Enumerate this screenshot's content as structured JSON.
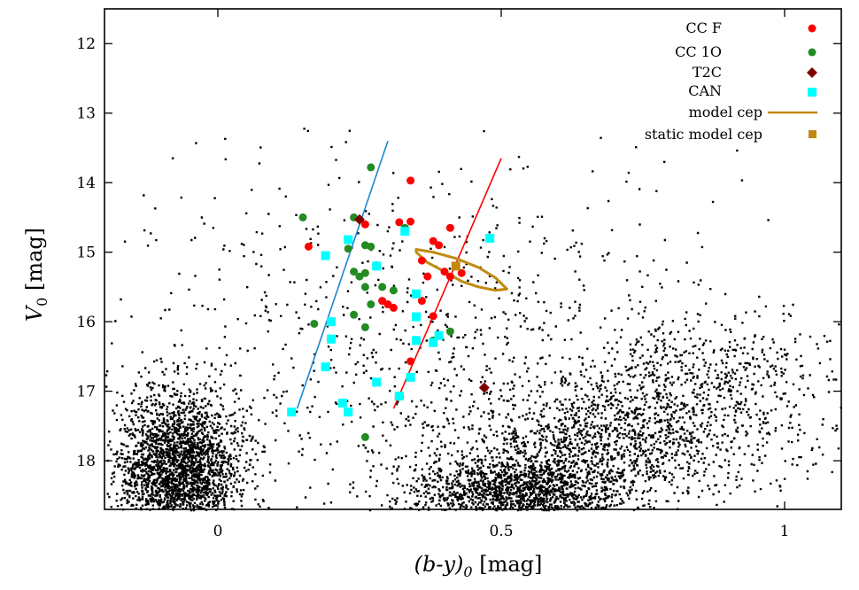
{
  "chart_data": {
    "type": "scatter",
    "title": "",
    "xlabel": "(b-y)0 [mag]",
    "xlabel_parts": {
      "main": "(b-y)",
      "sub": "0",
      "unit": " [mag]"
    },
    "ylabel": "V0 [mag]",
    "ylabel_parts": {
      "main": "V",
      "sub": "0",
      "unit": " [mag]"
    },
    "xlim": [
      -0.2,
      1.1
    ],
    "ylim": [
      18.7,
      11.5
    ],
    "y_inverted": true,
    "x_ticks": [
      0,
      0.5,
      1
    ],
    "x_tick_labels": [
      "0",
      "0.5",
      "1"
    ],
    "y_ticks": [
      12,
      13,
      14,
      15,
      16,
      17,
      18
    ],
    "y_tick_labels": [
      "12",
      "13",
      "14",
      "15",
      "16",
      "17",
      "18"
    ],
    "grid": false,
    "legend_position": "top-right",
    "series": [
      {
        "name": "CC F",
        "marker": "circle",
        "color": "#ff0000",
        "points": [
          [
            0.16,
            14.92
          ],
          [
            0.26,
            14.6
          ],
          [
            0.32,
            14.57
          ],
          [
            0.34,
            14.56
          ],
          [
            0.34,
            13.97
          ],
          [
            0.41,
            14.65
          ],
          [
            0.38,
            14.84
          ],
          [
            0.39,
            14.9
          ],
          [
            0.36,
            15.12
          ],
          [
            0.37,
            15.35
          ],
          [
            0.43,
            15.3
          ],
          [
            0.41,
            15.35
          ],
          [
            0.29,
            15.7
          ],
          [
            0.3,
            15.75
          ],
          [
            0.31,
            15.8
          ],
          [
            0.36,
            15.7
          ],
          [
            0.38,
            15.92
          ],
          [
            0.35,
            16.27
          ],
          [
            0.34,
            16.57
          ],
          [
            0.4,
            15.28
          ]
        ]
      },
      {
        "name": "CC 1O",
        "marker": "circle",
        "color": "#228b22",
        "points": [
          [
            0.15,
            14.5
          ],
          [
            0.24,
            14.5
          ],
          [
            0.27,
            13.78
          ],
          [
            0.23,
            14.95
          ],
          [
            0.26,
            14.9
          ],
          [
            0.27,
            14.92
          ],
          [
            0.24,
            15.28
          ],
          [
            0.25,
            15.35
          ],
          [
            0.26,
            15.5
          ],
          [
            0.26,
            15.3
          ],
          [
            0.29,
            15.5
          ],
          [
            0.31,
            15.55
          ],
          [
            0.27,
            15.75
          ],
          [
            0.24,
            15.9
          ],
          [
            0.17,
            16.03
          ],
          [
            0.2,
            16.25
          ],
          [
            0.26,
            16.08
          ],
          [
            0.38,
            16.27
          ],
          [
            0.41,
            16.14
          ],
          [
            0.26,
            17.66
          ],
          [
            0.33,
            14.65
          ]
        ]
      },
      {
        "name": "T2C",
        "marker": "diamond",
        "color": "#800000",
        "points": [
          [
            0.25,
            14.53
          ],
          [
            0.47,
            16.95
          ]
        ]
      },
      {
        "name": "CAN",
        "marker": "square",
        "color": "#00ffff",
        "points": [
          [
            0.13,
            17.3
          ],
          [
            0.19,
            16.65
          ],
          [
            0.2,
            16.25
          ],
          [
            0.2,
            16.0
          ],
          [
            0.22,
            17.17
          ],
          [
            0.23,
            17.3
          ],
          [
            0.28,
            16.87
          ],
          [
            0.32,
            17.07
          ],
          [
            0.34,
            16.8
          ],
          [
            0.35,
            16.27
          ],
          [
            0.35,
            15.93
          ],
          [
            0.35,
            15.6
          ],
          [
            0.38,
            16.3
          ],
          [
            0.39,
            16.2
          ],
          [
            0.28,
            15.2
          ],
          [
            0.23,
            14.82
          ],
          [
            0.19,
            15.05
          ],
          [
            0.33,
            14.7
          ],
          [
            0.48,
            14.8
          ]
        ]
      }
    ],
    "model_lines": [
      {
        "name": "",
        "color": "#1c86d1",
        "points": [
          [
            0.14,
            17.25
          ],
          [
            0.3,
            13.4
          ]
        ]
      },
      {
        "name": "",
        "color": "#ff0000",
        "points": [
          [
            0.31,
            17.25
          ],
          [
            0.5,
            13.65
          ]
        ]
      }
    ],
    "model_loop": {
      "name": "model cep",
      "color": "#c08a10",
      "points": [
        [
          0.35,
          14.96
        ],
        [
          0.38,
          15.0
        ],
        [
          0.42,
          15.09
        ],
        [
          0.46,
          15.22
        ],
        [
          0.49,
          15.37
        ],
        [
          0.51,
          15.53
        ],
        [
          0.49,
          15.55
        ],
        [
          0.46,
          15.5
        ],
        [
          0.43,
          15.42
        ],
        [
          0.4,
          15.28
        ],
        [
          0.37,
          15.15
        ],
        [
          0.35,
          15.0
        ]
      ]
    },
    "static_model": {
      "name": "static model cep",
      "color": "#c08a10",
      "points": [
        [
          0.42,
          15.2
        ]
      ]
    },
    "field_stars": {
      "color": "#000000",
      "seed": 7,
      "clumps": [
        {
          "n": 2600,
          "cx": -0.07,
          "sx": 0.055,
          "cy": 18.1,
          "sy": 0.55,
          "ymin": 15.3,
          "ymax": 18.7
        },
        {
          "n": 1700,
          "cx": 0.53,
          "sx": 0.1,
          "cy": 18.45,
          "sy": 0.28,
          "ymin": 17.5,
          "ymax": 18.7
        },
        {
          "n": 1300,
          "cx": 0.7,
          "sx": 0.15,
          "cy": 17.7,
          "sy": 0.45,
          "ymin": 16.2,
          "ymax": 18.7
        },
        {
          "n": 550,
          "cx": 0.85,
          "sx": 0.12,
          "cy": 16.8,
          "sy": 0.45,
          "ymin": 15.5,
          "ymax": 18.5
        },
        {
          "n": 900,
          "cx": 0.35,
          "sx": 0.3,
          "cy": 16.3,
          "sy": 1.3,
          "ymin": 13.2,
          "ymax": 18.7
        }
      ]
    }
  }
}
